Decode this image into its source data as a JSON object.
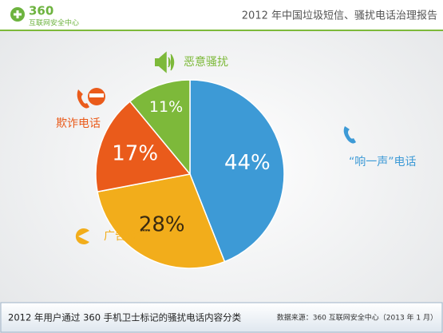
{
  "header": {
    "logo": "360",
    "logo_subtitle": "互联网安全中心"
  },
  "chart_data": {
    "type": "pie",
    "title": "2012 年中国垃圾短信、骚扰电话治理报告",
    "categories": [
      "“响一声”电话",
      "广告推销",
      "欺诈电话",
      "恶意骚扰"
    ],
    "values": [
      44,
      28,
      17,
      11
    ],
    "value_labels": [
      "44%",
      "28%",
      "17%",
      "11%"
    ],
    "colors": [
      "#3d9ad6",
      "#f2ad1b",
      "#ea5b1b",
      "#7db93a"
    ]
  },
  "footer": {
    "caption": "2012 年用户通过 360 手机卫士标记的骚扰电话内容分类",
    "source": "数据来源：360 互联网安全中心（2013 年 1 月）"
  }
}
